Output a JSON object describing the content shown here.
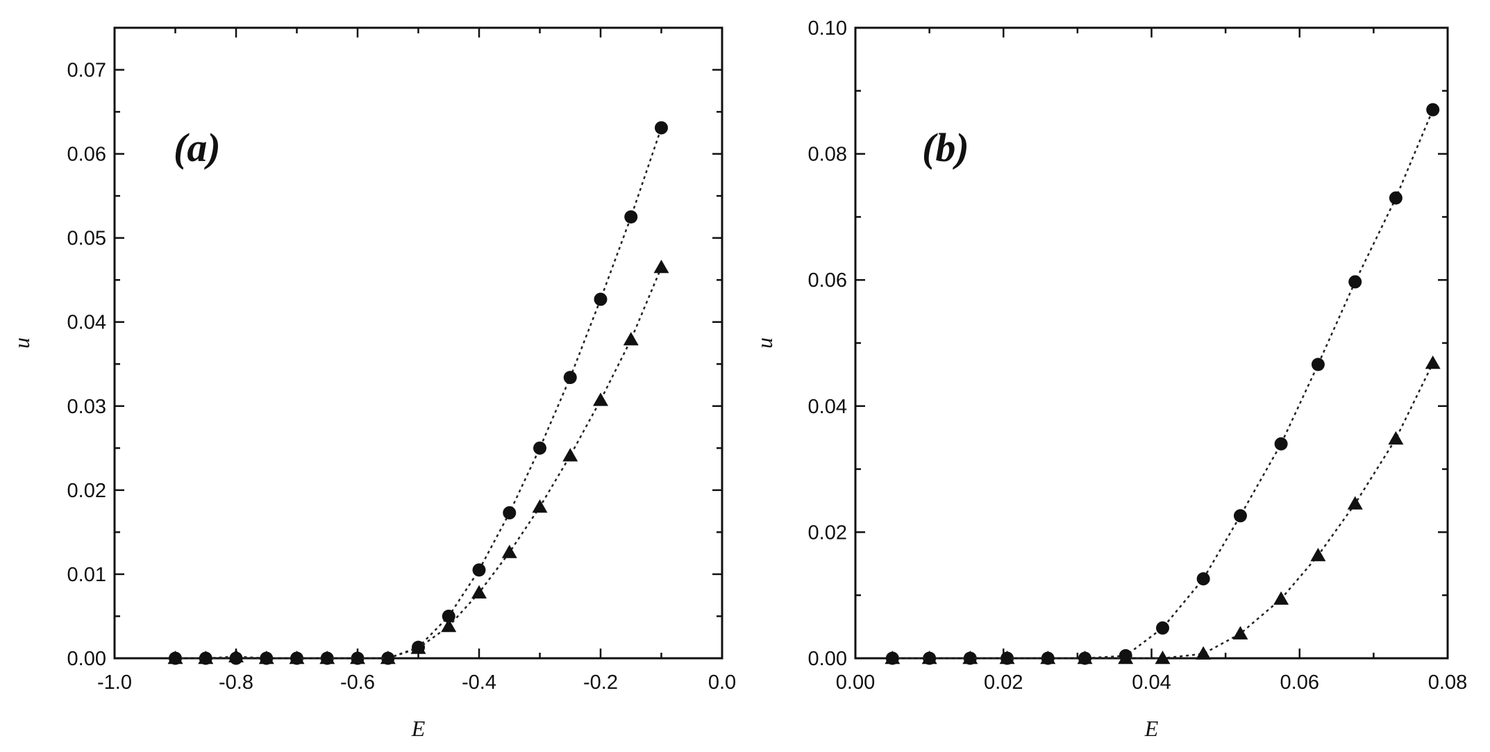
{
  "chart_data": [
    {
      "type": "line",
      "panel_label": "(a)",
      "xlabel": "E",
      "ylabel": "u",
      "xlim": [
        -1.0,
        0.0
      ],
      "ylim": [
        0.0,
        0.075
      ],
      "xticks": [
        -1.0,
        -0.8,
        -0.6,
        -0.4,
        -0.2,
        0.0
      ],
      "xtick_labels": [
        "-1.0",
        "-0.8",
        "-0.6",
        "-0.4",
        "-0.2",
        "0.0"
      ],
      "yticks": [
        0.0,
        0.01,
        0.02,
        0.03,
        0.04,
        0.05,
        0.06,
        0.07
      ],
      "ytick_labels": [
        "0.00",
        "0.01",
        "0.02",
        "0.03",
        "0.04",
        "0.05",
        "0.06",
        "0.07"
      ],
      "grid": false,
      "series": [
        {
          "marker": "circle",
          "x": [
            -0.9,
            -0.85,
            -0.8,
            -0.75,
            -0.7,
            -0.65,
            -0.6,
            -0.55,
            -0.5,
            -0.45,
            -0.4,
            -0.35,
            -0.3,
            -0.25,
            -0.2,
            -0.15,
            -0.1
          ],
          "y": [
            0.0,
            0.0,
            0.0,
            0.0,
            0.0,
            0.0,
            0.0,
            0.0,
            0.0013,
            0.005,
            0.0105,
            0.0173,
            0.025,
            0.0334,
            0.0427,
            0.0525,
            0.0631
          ]
        },
        {
          "marker": "triangle",
          "x": [
            -0.9,
            -0.85,
            -0.8,
            -0.75,
            -0.7,
            -0.65,
            -0.6,
            -0.55,
            -0.5,
            -0.45,
            -0.4,
            -0.35,
            -0.3,
            -0.25,
            -0.2,
            -0.15,
            -0.1
          ],
          "y": [
            0.0,
            0.0,
            0.0002,
            0.0,
            0.0,
            0.0,
            0.0,
            0.0,
            0.0012,
            0.0038,
            0.0078,
            0.0126,
            0.018,
            0.0241,
            0.0307,
            0.0379,
            0.0465
          ]
        }
      ]
    },
    {
      "type": "line",
      "panel_label": "(b)",
      "xlabel": "E",
      "ylabel": "u",
      "xlim": [
        0.0,
        0.08
      ],
      "ylim": [
        0.0,
        0.1
      ],
      "xticks": [
        0.0,
        0.02,
        0.04,
        0.06,
        0.08
      ],
      "xtick_labels": [
        "0.00",
        "0.02",
        "0.04",
        "0.06",
        "0.08"
      ],
      "yticks": [
        0.0,
        0.02,
        0.04,
        0.06,
        0.08,
        0.1
      ],
      "ytick_labels": [
        "0.00",
        "0.02",
        "0.04",
        "0.06",
        "0.08",
        "0.10"
      ],
      "grid": false,
      "series": [
        {
          "marker": "circle",
          "x": [
            0.005,
            0.01,
            0.0155,
            0.0205,
            0.026,
            0.031,
            0.0365,
            0.0415,
            0.047,
            0.052,
            0.0575,
            0.0625,
            0.0675,
            0.073,
            0.078
          ],
          "y": [
            0.0,
            0.0,
            0.0,
            0.0,
            0.0,
            0.0,
            0.0004,
            0.0048,
            0.0126,
            0.0226,
            0.034,
            0.0466,
            0.0597,
            0.073,
            0.087
          ]
        },
        {
          "marker": "triangle",
          "x": [
            0.005,
            0.01,
            0.0155,
            0.0205,
            0.026,
            0.031,
            0.0365,
            0.0415,
            0.047,
            0.052,
            0.0575,
            0.0625,
            0.0675,
            0.073,
            0.078
          ],
          "y": [
            0.0,
            0.0,
            0.0,
            0.0,
            0.0,
            0.0,
            0.0,
            0.0,
            0.0007,
            0.0039,
            0.0094,
            0.0163,
            0.0245,
            0.0348,
            0.0468
          ]
        }
      ]
    }
  ]
}
